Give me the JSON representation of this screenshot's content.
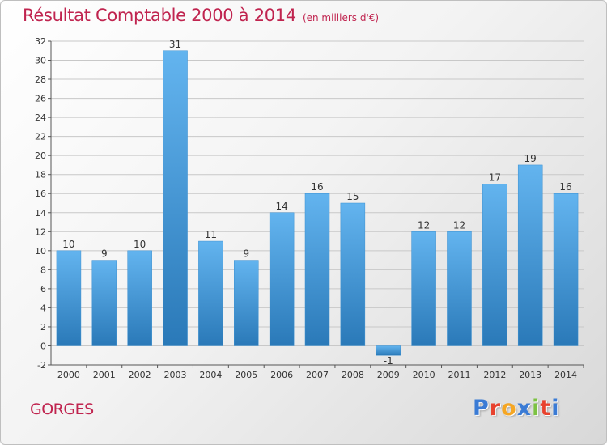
{
  "header": {
    "title": "Résultat Comptable 2000 à 2014",
    "subtitle": "(en milliers d'€)"
  },
  "footer": {
    "place_name": "GORGES",
    "brand": "Proxiti",
    "brand_letter_colors": [
      "#3a7bd5",
      "#e8422e",
      "#f5a623",
      "#3a7bd5",
      "#7cc242",
      "#e8422e",
      "#3a7bd5"
    ]
  },
  "colors": {
    "title": "#c0244f",
    "bar_light": "#63b4ef",
    "bar_dark": "#2a79b8",
    "grid": "#c8c8c8"
  },
  "chart_data": {
    "type": "bar",
    "categories": [
      "2000",
      "2001",
      "2002",
      "2003",
      "2004",
      "2005",
      "2006",
      "2007",
      "2008",
      "2009",
      "2010",
      "2011",
      "2012",
      "2013",
      "2014"
    ],
    "values": [
      10,
      9,
      10,
      31,
      11,
      9,
      14,
      16,
      15,
      -1,
      12,
      12,
      17,
      19,
      16
    ],
    "value_labels": [
      "10",
      "9",
      "10",
      "31",
      "11",
      "9",
      "14",
      "16",
      "15",
      "-1",
      "12",
      "12",
      "17",
      "19",
      "16"
    ],
    "ylim": [
      -2,
      32
    ],
    "yticks": [
      -2,
      0,
      2,
      4,
      6,
      8,
      10,
      12,
      14,
      16,
      18,
      20,
      22,
      24,
      26,
      28,
      30,
      32
    ],
    "grid": true,
    "legend": "none"
  }
}
